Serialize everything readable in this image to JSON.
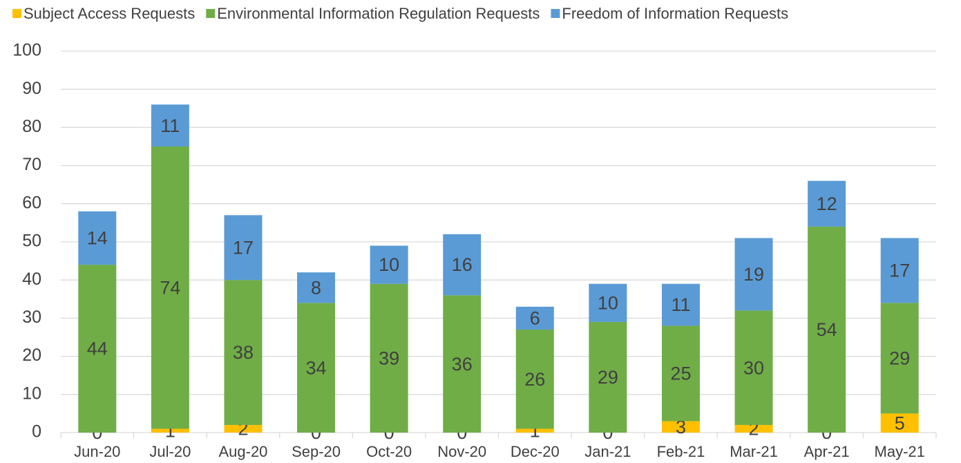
{
  "chart_data": {
    "type": "bar",
    "stacked": true,
    "categories": [
      "Jun-20",
      "Jul-20",
      "Aug-20",
      "Sep-20",
      "Oct-20",
      "Nov-20",
      "Dec-20",
      "Jan-21",
      "Feb-21",
      "Mar-21",
      "Apr-21",
      "May-21"
    ],
    "series": [
      {
        "name": "Subject Access Requests",
        "color": "#ffc000",
        "values": [
          0,
          1,
          2,
          0,
          0,
          0,
          1,
          0,
          3,
          2,
          0,
          5
        ]
      },
      {
        "name": "Environmental Information Regulation Requests",
        "color": "#70ad47",
        "values": [
          44,
          74,
          38,
          34,
          39,
          36,
          26,
          29,
          25,
          30,
          54,
          29
        ]
      },
      {
        "name": "Freedom of Information Requests",
        "color": "#5b9bd5",
        "values": [
          14,
          11,
          17,
          8,
          10,
          16,
          6,
          10,
          11,
          19,
          12,
          17
        ]
      }
    ],
    "ylim": [
      0,
      100
    ],
    "yticks": [
      0,
      10,
      20,
      30,
      40,
      50,
      60,
      70,
      80,
      90,
      100
    ],
    "grid": true,
    "legend": "top"
  }
}
